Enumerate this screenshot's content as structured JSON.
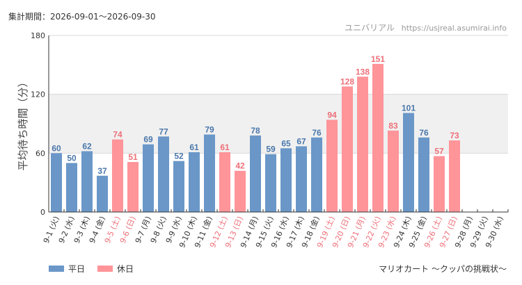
{
  "header": {
    "period_label": "集計期間：2026-09-01～2026-09-30",
    "site_name": "ユニバリアル",
    "site_url": "https://usjreal.asumirai.info"
  },
  "footer": {
    "attraction_name": "マリオカート ～クッパの挑戦状～"
  },
  "legend": [
    {
      "name": "平日",
      "color": "#6a97c8"
    },
    {
      "name": "休日",
      "color": "#ff9499"
    }
  ],
  "colors": {
    "weekday": "#6a97c8",
    "holiday": "#ff9499",
    "weekday_label": "#4a77ab",
    "holiday_label": "#ee6f78",
    "band": "#f0f0f0",
    "axis": "#333333",
    "grid": "#d8d8d8"
  },
  "chart_data": {
    "type": "bar",
    "ylabel": "平均待ち時間（分）",
    "xlabel": "",
    "ylim": [
      0,
      180
    ],
    "yticks": [
      0,
      60,
      120,
      180
    ],
    "shaded_band": [
      60,
      120
    ],
    "grid": true,
    "legend_position": "bottom-left",
    "categories": [
      "9-1 (火)",
      "9-2 (水)",
      "9-3 (木)",
      "9-4 (金)",
      "9-5 (土)",
      "9-6 (日)",
      "9-7 (月)",
      "9-8 (火)",
      "9-9 (水)",
      "9-10 (木)",
      "9-11 (金)",
      "9-12 (土)",
      "9-13 (日)",
      "9-14 (月)",
      "9-15 (火)",
      "9-16 (水)",
      "9-17 (木)",
      "9-18 (金)",
      "9-19 (土)",
      "9-20 (日)",
      "9-21 (月)",
      "9-22 (火)",
      "9-23 (水)",
      "9-24 (木)",
      "9-25 (金)",
      "9-26 (土)",
      "9-27 (日)",
      "9-28 (月)",
      "9-29 (火)",
      "9-30 (水)"
    ],
    "values": [
      60,
      50,
      62,
      37,
      74,
      51,
      69,
      77,
      52,
      61,
      79,
      61,
      42,
      78,
      59,
      65,
      67,
      76,
      94,
      128,
      138,
      151,
      83,
      101,
      76,
      57,
      73,
      null,
      null,
      null
    ],
    "day_type": [
      "平日",
      "平日",
      "平日",
      "平日",
      "休日",
      "休日",
      "平日",
      "平日",
      "平日",
      "平日",
      "平日",
      "休日",
      "休日",
      "平日",
      "平日",
      "平日",
      "平日",
      "平日",
      "休日",
      "休日",
      "休日",
      "休日",
      "休日",
      "平日",
      "平日",
      "休日",
      "休日",
      "平日",
      "平日",
      "平日"
    ]
  }
}
